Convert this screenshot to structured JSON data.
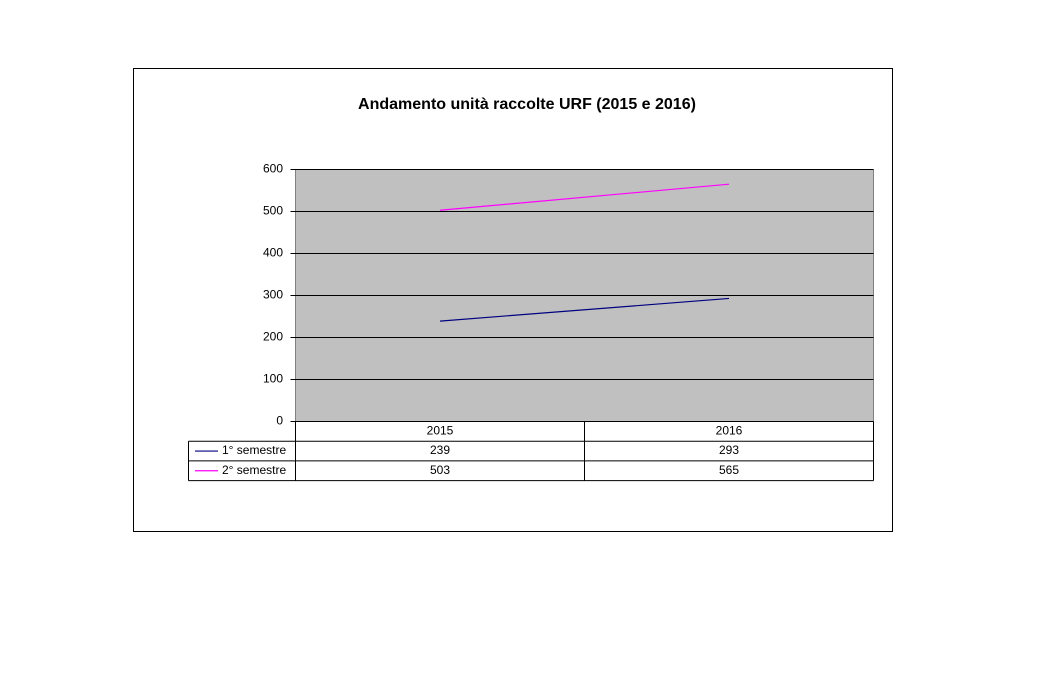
{
  "chart_data": {
    "type": "line",
    "title": "Andamento unità raccolte URF (2015 e 2016)",
    "categories": [
      "2015",
      "2016"
    ],
    "series": [
      {
        "name": "1° semestre",
        "color": "#000080",
        "values": [
          239,
          293
        ]
      },
      {
        "name": "2° semestre",
        "color": "#ff00ff",
        "values": [
          503,
          565
        ]
      }
    ],
    "ylim": [
      0,
      600
    ],
    "yticks": [
      0,
      100,
      200,
      300,
      400,
      500,
      600
    ],
    "grid": true
  }
}
